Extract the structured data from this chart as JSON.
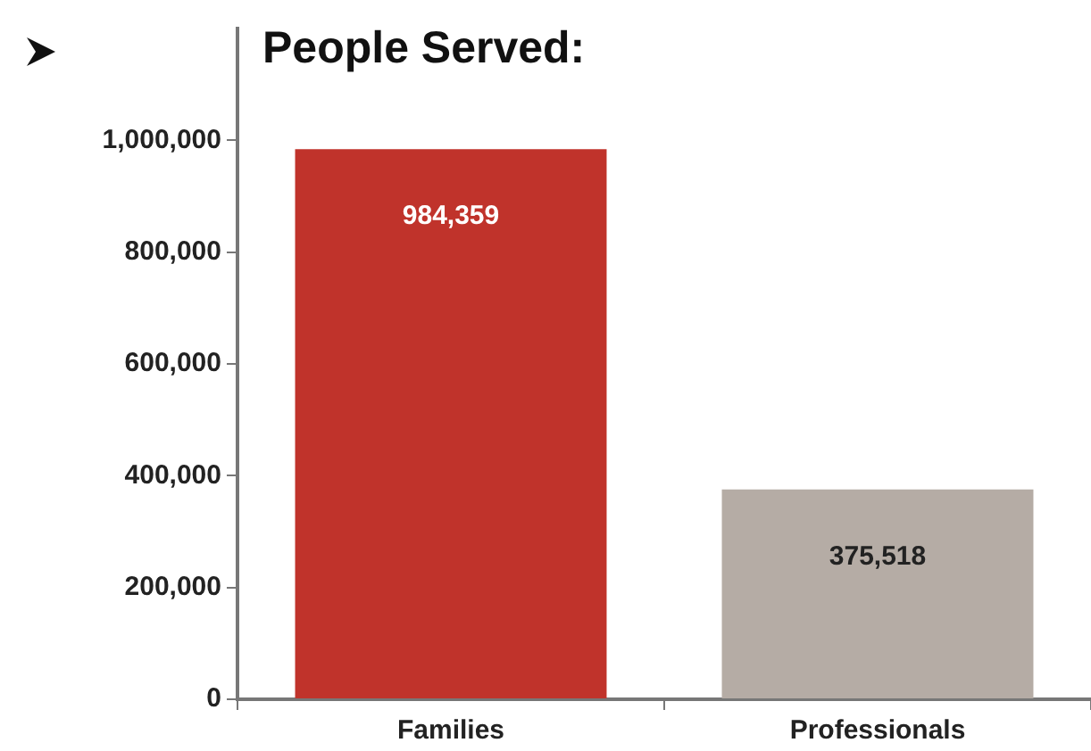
{
  "chart_data": {
    "type": "bar",
    "title": "People Served:",
    "categories": [
      "Families",
      "Professionals"
    ],
    "values": [
      984359,
      375518
    ],
    "value_labels": [
      "984,359",
      "375,518"
    ],
    "colors": [
      "#c0332b",
      "#b5aca5"
    ],
    "ylim": [
      0,
      1200000
    ],
    "yticks": [
      0,
      {
        "value": 200000,
        "label": "200,000"
      },
      {
        "value": 400000,
        "label": "400,000"
      },
      {
        "value": 600000,
        "label": "600,000"
      },
      {
        "value": 800000,
        "label": "800,000"
      },
      {
        "value": 1000000,
        "label": "1,000,000"
      }
    ],
    "grid": false,
    "legend": false
  }
}
